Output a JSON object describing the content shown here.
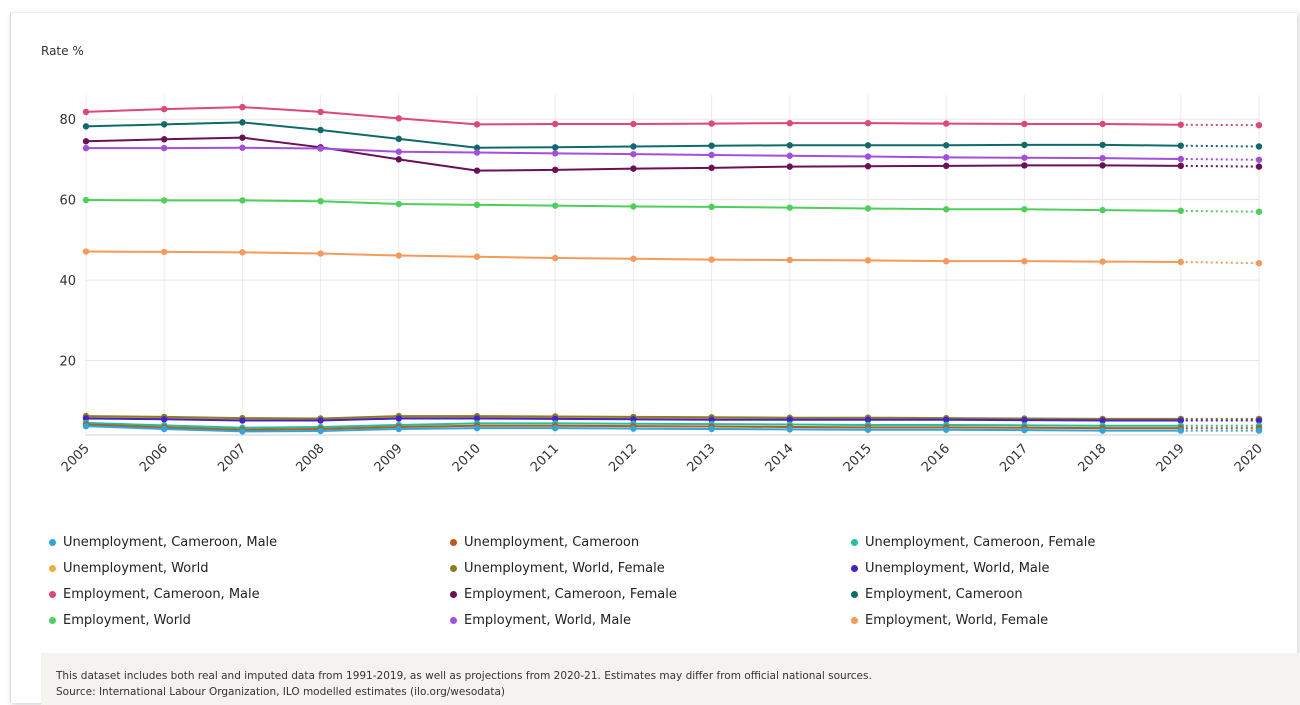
{
  "chart_data": {
    "type": "line",
    "ylabel": "Rate %",
    "x": [
      "2005",
      "2006",
      "2007",
      "2008",
      "2009",
      "2010",
      "2011",
      "2012",
      "2013",
      "2014",
      "2015",
      "2016",
      "2017",
      "2018",
      "2019",
      "2020"
    ],
    "ylim": [
      1.5,
      86
    ],
    "yticks": [
      20,
      40,
      60,
      80
    ],
    "grid": true,
    "projected_from": "2019",
    "series": [
      {
        "name": "Unemployment, Cameroon, Male",
        "color": "#2fa7d8",
        "values": [
          3.7,
          3.0,
          2.4,
          2.5,
          3.0,
          3.2,
          3.2,
          3.1,
          3.0,
          2.9,
          2.8,
          2.8,
          2.7,
          2.6,
          2.6,
          2.6
        ]
      },
      {
        "name": "Unemployment, Cameroon",
        "color": "#b85a1b",
        "values": [
          4.1,
          3.4,
          2.8,
          3.0,
          3.5,
          3.8,
          3.8,
          3.7,
          3.6,
          3.5,
          3.4,
          3.4,
          3.3,
          3.2,
          3.2,
          3.2
        ]
      },
      {
        "name": "Unemployment, Cameroon, Female",
        "color": "#1fc1a0",
        "values": [
          4.5,
          3.9,
          3.3,
          3.5,
          4.0,
          4.4,
          4.4,
          4.3,
          4.2,
          4.1,
          4.0,
          4.0,
          3.9,
          3.8,
          3.8,
          3.8
        ]
      },
      {
        "name": "Unemployment, World",
        "color": "#f3ac3b",
        "values": [
          5.9,
          5.7,
          5.4,
          5.4,
          5.9,
          5.9,
          5.8,
          5.8,
          5.7,
          5.6,
          5.6,
          5.6,
          5.5,
          5.4,
          5.4,
          5.4
        ]
      },
      {
        "name": "Unemployment, World, Female",
        "color": "#8b7e1f",
        "values": [
          6.2,
          6.0,
          5.7,
          5.6,
          6.2,
          6.2,
          6.1,
          6.0,
          5.9,
          5.8,
          5.8,
          5.7,
          5.6,
          5.5,
          5.5,
          5.5
        ]
      },
      {
        "name": "Unemployment, World, Male",
        "color": "#4422cc",
        "values": [
          5.6,
          5.4,
          5.1,
          5.1,
          5.6,
          5.6,
          5.5,
          5.4,
          5.3,
          5.3,
          5.3,
          5.3,
          5.2,
          5.1,
          5.1,
          5.1
        ]
      },
      {
        "name": "Employment, Cameroon, Male",
        "color": "#e0457b",
        "values": [
          81.8,
          82.5,
          83.0,
          81.8,
          80.2,
          78.7,
          78.8,
          78.8,
          78.9,
          79.0,
          79.0,
          78.9,
          78.8,
          78.8,
          78.6,
          78.5
        ]
      },
      {
        "name": "Employment, Cameroon, Female",
        "color": "#6b0f57",
        "values": [
          74.5,
          75.0,
          75.4,
          73.0,
          70.0,
          67.2,
          67.4,
          67.7,
          67.9,
          68.2,
          68.3,
          68.4,
          68.5,
          68.5,
          68.4,
          68.2
        ]
      },
      {
        "name": "Employment, Cameroon",
        "color": "#0f6b6b",
        "values": [
          78.2,
          78.7,
          79.2,
          77.3,
          75.1,
          72.9,
          73.0,
          73.2,
          73.4,
          73.5,
          73.5,
          73.5,
          73.6,
          73.6,
          73.4,
          73.2
        ]
      },
      {
        "name": "Employment, World",
        "color": "#4cd05a",
        "values": [
          59.9,
          59.8,
          59.8,
          59.6,
          58.9,
          58.7,
          58.5,
          58.3,
          58.2,
          58.0,
          57.8,
          57.6,
          57.6,
          57.4,
          57.2,
          57.0
        ]
      },
      {
        "name": "Employment, World, Male",
        "color": "#a24fe0",
        "values": [
          72.8,
          72.8,
          72.9,
          72.7,
          71.9,
          71.7,
          71.5,
          71.3,
          71.1,
          70.9,
          70.7,
          70.5,
          70.4,
          70.3,
          70.1,
          69.9
        ]
      },
      {
        "name": "Employment, World, Female",
        "color": "#f59a58",
        "values": [
          47.1,
          47.0,
          46.9,
          46.6,
          46.1,
          45.8,
          45.5,
          45.3,
          45.1,
          45.0,
          44.9,
          44.7,
          44.7,
          44.6,
          44.5,
          44.2
        ]
      }
    ]
  },
  "footnote": {
    "line1": "This dataset includes both real and imputed data from 1991-2019, as well as projections from 2020-21. Estimates may differ from official national sources.",
    "line2": "Source: International Labour Organization, ILO modelled estimates (ilo.org/wesodata)"
  }
}
